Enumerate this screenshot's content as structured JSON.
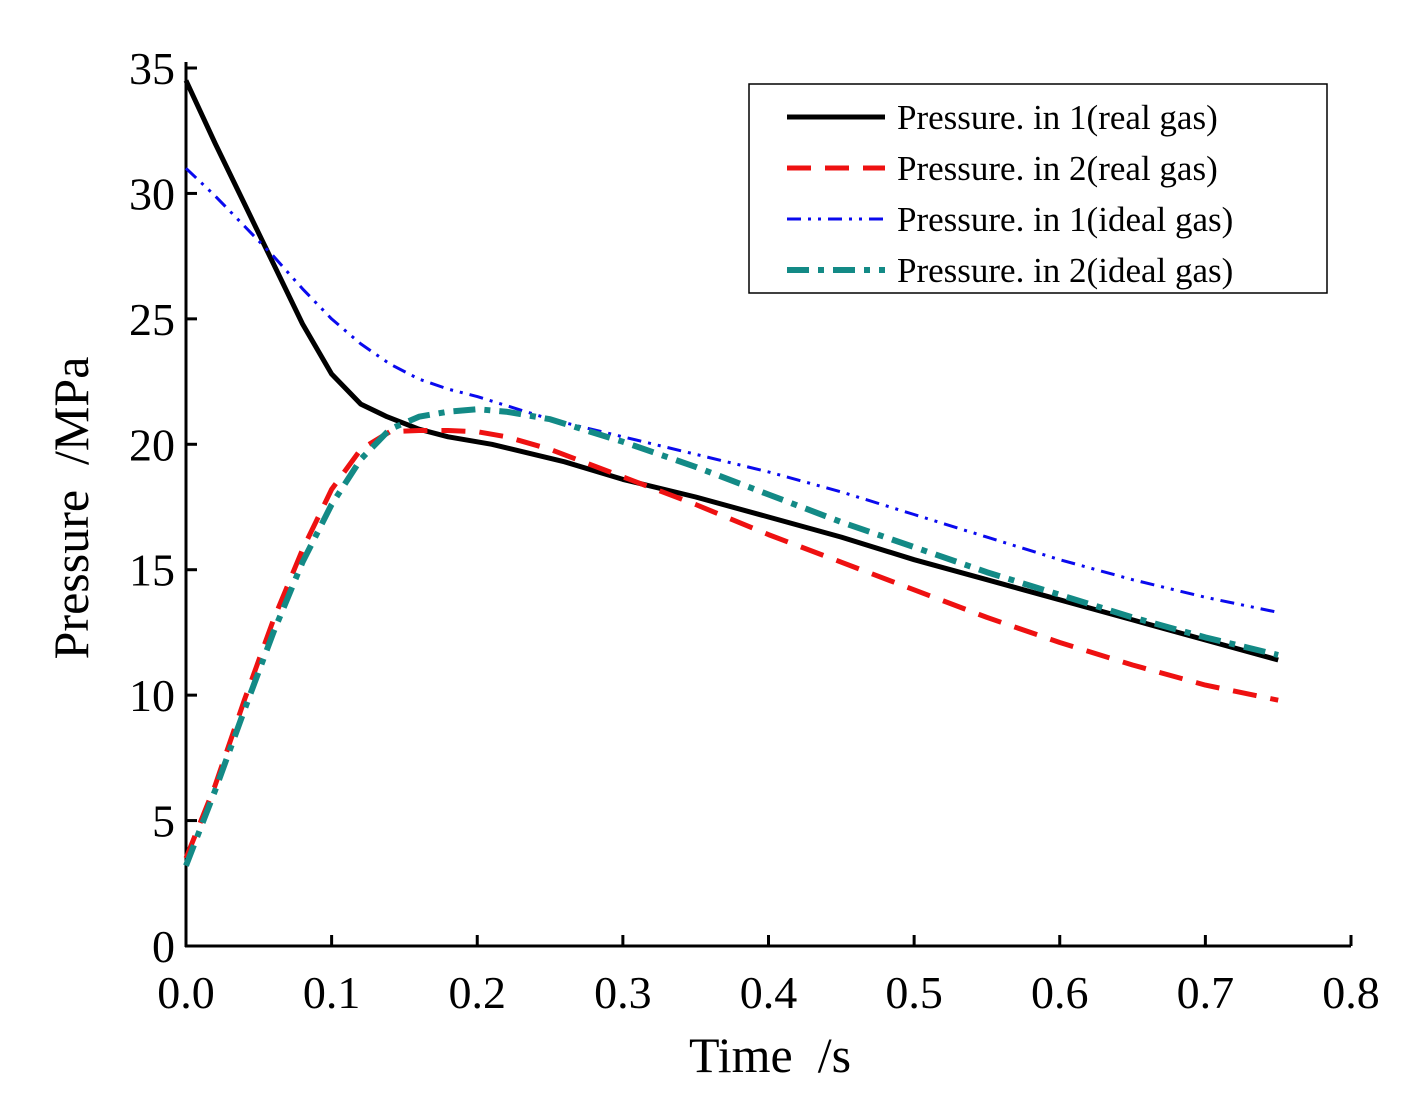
{
  "chart_data": {
    "type": "line",
    "title": "",
    "xlabel": "Time  /s",
    "ylabel": "Pressure  /MPa",
    "xlim": [
      0,
      0.8
    ],
    "ylim": [
      0,
      35
    ],
    "xticks": [
      "0.0",
      "0.1",
      "0.2",
      "0.3",
      "0.4",
      "0.5",
      "0.6",
      "0.7",
      "0.8"
    ],
    "yticks": [
      "0",
      "5",
      "10",
      "15",
      "20",
      "25",
      "30",
      "35"
    ],
    "grid": false,
    "legend_position": "top-right",
    "series": [
      {
        "name": "Pressure. in 1(real gas)",
        "color": "#000000",
        "style": "solid",
        "x": [
          0,
          0.02,
          0.04,
          0.06,
          0.08,
          0.1,
          0.12,
          0.138,
          0.16,
          0.18,
          0.21,
          0.26,
          0.3,
          0.35,
          0.4,
          0.45,
          0.5,
          0.55,
          0.6,
          0.65,
          0.7,
          0.75
        ],
        "y": [
          34.5,
          32.0,
          29.6,
          27.2,
          24.8,
          22.8,
          21.6,
          21.1,
          20.6,
          20.3,
          20.0,
          19.3,
          18.6,
          17.9,
          17.1,
          16.3,
          15.4,
          14.6,
          13.8,
          13.0,
          12.2,
          11.4
        ]
      },
      {
        "name": "Pressure. in 2(real gas)",
        "color": "#ee1111",
        "style": "dash",
        "x": [
          0,
          0.02,
          0.04,
          0.06,
          0.08,
          0.1,
          0.12,
          0.14,
          0.16,
          0.18,
          0.2,
          0.22,
          0.25,
          0.3,
          0.35,
          0.4,
          0.45,
          0.5,
          0.55,
          0.6,
          0.65,
          0.7,
          0.75
        ],
        "y": [
          3.5,
          6.4,
          9.8,
          13.0,
          15.8,
          18.2,
          19.8,
          20.5,
          20.55,
          20.55,
          20.5,
          20.3,
          19.8,
          18.7,
          17.6,
          16.4,
          15.3,
          14.2,
          13.1,
          12.1,
          11.2,
          10.4,
          9.8
        ]
      },
      {
        "name": "Pressure. in 1(ideal gas)",
        "color": "#0a0aee",
        "style": "dash-dot-dot",
        "x": [
          0,
          0.02,
          0.04,
          0.06,
          0.08,
          0.1,
          0.12,
          0.14,
          0.16,
          0.18,
          0.2,
          0.25,
          0.3,
          0.35,
          0.4,
          0.45,
          0.5,
          0.55,
          0.6,
          0.65,
          0.7,
          0.75
        ],
        "y": [
          31.0,
          29.9,
          28.7,
          27.5,
          26.2,
          25.0,
          24.0,
          23.2,
          22.6,
          22.2,
          21.9,
          21.0,
          20.3,
          19.6,
          18.9,
          18.1,
          17.2,
          16.3,
          15.4,
          14.6,
          13.9,
          13.3
        ]
      },
      {
        "name": "Pressure. in 2(ideal gas)",
        "color": "#138a86",
        "style": "dash-dot",
        "x": [
          0,
          0.02,
          0.04,
          0.06,
          0.08,
          0.1,
          0.12,
          0.14,
          0.16,
          0.18,
          0.2,
          0.22,
          0.25,
          0.3,
          0.35,
          0.4,
          0.45,
          0.5,
          0.55,
          0.6,
          0.65,
          0.7,
          0.75
        ],
        "y": [
          3.2,
          6.2,
          9.4,
          12.5,
          15.3,
          17.6,
          19.4,
          20.6,
          21.1,
          21.3,
          21.4,
          21.3,
          21.0,
          20.1,
          19.1,
          18.0,
          16.9,
          15.9,
          14.9,
          14.0,
          13.1,
          12.3,
          11.6
        ]
      }
    ]
  }
}
